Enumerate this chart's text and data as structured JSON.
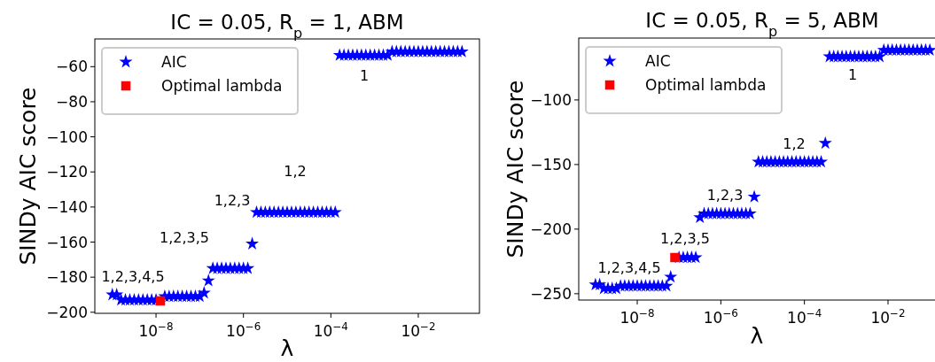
{
  "chart_data": [
    {
      "type": "scatter",
      "title": "IC = 0.05,  R$_{p}$ = 1, ABM",
      "xlabel": "λ",
      "ylabel": "SINDy AIC score",
      "log": "x",
      "legend": "top left",
      "grid": false,
      "xlim": [
        3.98e-10,
        0.251
      ],
      "xticks": [
        {
          "value": 1e-08,
          "label": "10$^{−8}$"
        },
        {
          "value": 1e-06,
          "label": "10$^{−6}$"
        },
        {
          "value": 0.0001,
          "label": "10$^{−4}$"
        },
        {
          "value": 0.01,
          "label": "10$^{−2}$"
        }
      ],
      "ylim": [
        -200.6,
        -44.2
      ],
      "yticks": [
        {
          "value": -200,
          "label": "−200"
        },
        {
          "value": -180,
          "label": "−180"
        },
        {
          "value": -160,
          "label": "−160"
        },
        {
          "value": -140,
          "label": "−140"
        },
        {
          "value": -120,
          "label": "−120"
        },
        {
          "value": -100,
          "label": "−100"
        },
        {
          "value": -80,
          "label": "−80"
        },
        {
          "value": -60,
          "label": "−60"
        }
      ],
      "series": [
        {
          "name": "AIC",
          "color": "#0000ff",
          "marker": "star",
          "x": [
            1e-09,
            1.259e-09,
            1.585e-09,
            1.995e-09,
            2.512e-09,
            3.162e-09,
            3.981e-09,
            5.012e-09,
            6.31e-09,
            7.943e-09,
            1e-08,
            1.585e-08,
            1.995e-08,
            2.512e-08,
            3.162e-08,
            3.981e-08,
            5.012e-08,
            6.31e-08,
            7.943e-08,
            1e-07,
            1.259e-07,
            1.585e-07,
            1.995e-07,
            2.512e-07,
            3.162e-07,
            3.981e-07,
            5.012e-07,
            6.31e-07,
            7.943e-07,
            1e-06,
            1.259e-06,
            1.585e-06,
            1.995e-06,
            2.512e-06,
            3.162e-06,
            3.981e-06,
            5.012e-06,
            6.31e-06,
            7.943e-06,
            1e-05,
            1.259e-05,
            1.585e-05,
            1.995e-05,
            2.512e-05,
            3.162e-05,
            3.981e-05,
            5.012e-05,
            6.31e-05,
            7.943e-05,
            0.0001,
            0.0001259,
            0.0001585,
            0.0001995,
            0.0002512,
            0.0003162,
            0.0003981,
            0.0005012,
            0.000631,
            0.0007943,
            0.001,
            0.001259,
            0.001585,
            0.001995,
            0.002512,
            0.003162,
            0.003981,
            0.005012,
            0.00631,
            0.007943,
            0.01,
            0.01259,
            0.01585,
            0.01995,
            0.02512,
            0.03162,
            0.03981,
            0.05012,
            0.0631,
            0.07943,
            0.1
          ],
          "values": [
            -190,
            -190,
            -193,
            -193,
            -193,
            -193,
            -193,
            -193,
            -193,
            -193,
            -193,
            -191,
            -191,
            -191,
            -191,
            -191,
            -191,
            -191,
            -191,
            -191,
            -189,
            -182,
            -175,
            -175,
            -175,
            -175,
            -175,
            -175,
            -175,
            -175,
            -175,
            -161,
            -143,
            -143,
            -143,
            -143,
            -143,
            -143,
            -143,
            -143,
            -143,
            -143,
            -143,
            -143,
            -143,
            -143,
            -143,
            -143,
            -143,
            -143,
            -143,
            -53.5,
            -53.5,
            -53.5,
            -53.5,
            -53.5,
            -53.5,
            -53.5,
            -53.5,
            -53.5,
            -53.5,
            -53.5,
            -53.5,
            -51.5,
            -51.5,
            -51.5,
            -51.5,
            -51.5,
            -51.5,
            -51.5,
            -51.5,
            -51.5,
            -51.5,
            -51.5,
            -51.5,
            -51.5,
            -51.5,
            -51.5,
            -51.5,
            -51.5
          ]
        },
        {
          "name": "Optimal lambda",
          "color": "#ff0000",
          "marker": "square",
          "x": [
            1.259e-08
          ],
          "values": [
            -193.5
          ]
        }
      ],
      "annotations": [
        "1,2,3,4,5",
        "1,2,3,5",
        "1,2,3",
        "1,2",
        "1"
      ]
    },
    {
      "type": "scatter",
      "title": "IC = 0.05,  R$_{p}$ = 5, ABM",
      "xlabel": "λ",
      "ylabel": "SINDy AIC score",
      "log": "x",
      "legend": "top left",
      "grid": false,
      "xlim": [
        3.98e-10,
        0.251
      ],
      "xticks": [
        {
          "value": 1e-08,
          "label": "10$^{−8}$"
        },
        {
          "value": 1e-06,
          "label": "10$^{−6}$"
        },
        {
          "value": 0.0001,
          "label": "10$^{−4}$"
        },
        {
          "value": 0.01,
          "label": "10$^{−2}$"
        }
      ],
      "ylim": [
        -254.9,
        -52.1
      ],
      "yticks": [
        {
          "value": -250,
          "label": "−250"
        },
        {
          "value": -200,
          "label": "−200"
        },
        {
          "value": -150,
          "label": "−150"
        },
        {
          "value": -100,
          "label": "−100"
        }
      ],
      "series": [
        {
          "name": "AIC",
          "color": "#0000ff",
          "marker": "star",
          "x": [
            1e-09,
            1.259e-09,
            1.585e-09,
            1.995e-09,
            2.512e-09,
            3.162e-09,
            3.981e-09,
            5.012e-09,
            6.31e-09,
            7.943e-09,
            1e-08,
            1.259e-08,
            1.585e-08,
            1.995e-08,
            2.512e-08,
            3.162e-08,
            3.981e-08,
            5.012e-08,
            6.31e-08,
            1e-07,
            1.259e-07,
            1.585e-07,
            1.995e-07,
            2.512e-07,
            3.162e-07,
            3.981e-07,
            5.012e-07,
            6.31e-07,
            7.943e-07,
            1e-06,
            1.259e-06,
            1.585e-06,
            1.995e-06,
            2.512e-06,
            3.162e-06,
            3.981e-06,
            5.012e-06,
            6.31e-06,
            7.943e-06,
            1e-05,
            1.259e-05,
            1.585e-05,
            1.995e-05,
            2.512e-05,
            3.162e-05,
            3.981e-05,
            5.012e-05,
            6.31e-05,
            7.943e-05,
            0.0001,
            0.0001259,
            0.0001585,
            0.0001995,
            0.0002512,
            0.0003162,
            0.0003981,
            0.0005012,
            0.000631,
            0.0007943,
            0.001,
            0.001259,
            0.001585,
            0.001995,
            0.002512,
            0.003162,
            0.003981,
            0.005012,
            0.00631,
            0.007943,
            0.01,
            0.01259,
            0.01585,
            0.01995,
            0.02512,
            0.03162,
            0.03981,
            0.05012,
            0.0631,
            0.07943,
            0.1
          ],
          "values": [
            -243,
            -243,
            -246,
            -246,
            -246,
            -246,
            -244,
            -244,
            -244,
            -244,
            -244,
            -244,
            -244,
            -244,
            -244,
            -244,
            -244,
            -244,
            -237,
            -222,
            -222,
            -222,
            -222,
            -222,
            -191,
            -188,
            -188,
            -188,
            -188,
            -188,
            -188,
            -188,
            -188,
            -188,
            -188,
            -188,
            -188,
            -175,
            -148,
            -148,
            -148,
            -148,
            -148,
            -148,
            -148,
            -148,
            -148,
            -148,
            -148,
            -148,
            -148,
            -148,
            -148,
            -148,
            -133.5,
            -66.5,
            -66.5,
            -66.5,
            -66.5,
            -66.5,
            -66.5,
            -66.5,
            -66.5,
            -66.5,
            -66.5,
            -66.5,
            -66.5,
            -66.5,
            -61.5,
            -61.5,
            -61.5,
            -61.5,
            -61.5,
            -61.5,
            -61.5,
            -61.5,
            -61.5,
            -61.5,
            -61.5,
            -61.5
          ]
        },
        {
          "name": "Optimal lambda",
          "color": "#ff0000",
          "marker": "square",
          "x": [
            7.943e-08
          ],
          "values": [
            -222
          ]
        }
      ],
      "annotations": [
        "1,2,3,4,5",
        "1,2,3,5",
        "1,2,3",
        "1,2",
        "1"
      ]
    }
  ]
}
